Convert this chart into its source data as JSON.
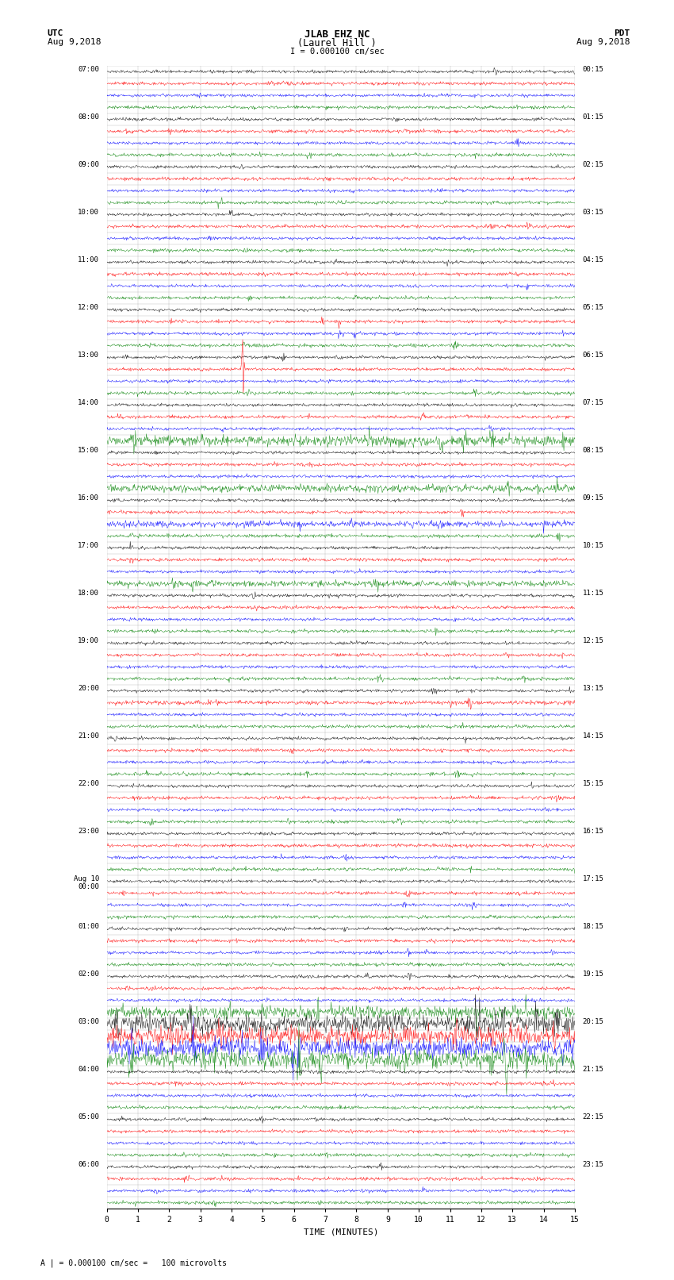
{
  "title_line1": "JLAB EHZ NC",
  "title_line2": "(Laurel Hill )",
  "scale_text": "I = 0.000100 cm/sec",
  "bottom_note": "A | = 0.000100 cm/sec =   100 microvolts",
  "xlabel": "TIME (MINUTES)",
  "utc_times": [
    "07:00",
    "08:00",
    "09:00",
    "10:00",
    "11:00",
    "12:00",
    "13:00",
    "14:00",
    "15:00",
    "16:00",
    "17:00",
    "18:00",
    "19:00",
    "20:00",
    "21:00",
    "22:00",
    "23:00",
    "Aug 10\n00:00",
    "01:00",
    "02:00",
    "03:00",
    "04:00",
    "05:00",
    "06:00"
  ],
  "pdt_times": [
    "00:15",
    "01:15",
    "02:15",
    "03:15",
    "04:15",
    "05:15",
    "06:15",
    "07:15",
    "08:15",
    "09:15",
    "10:15",
    "11:15",
    "12:15",
    "13:15",
    "14:15",
    "15:15",
    "16:15",
    "17:15",
    "18:15",
    "19:15",
    "20:15",
    "21:15",
    "22:15",
    "23:15"
  ],
  "colors": [
    "black",
    "red",
    "blue",
    "green"
  ],
  "n_rows": 96,
  "n_hour_groups": 24,
  "n_minutes": 15,
  "samples_per_row": 900,
  "noise_base": 0.06,
  "background_color": "white",
  "font_family": "monospace"
}
